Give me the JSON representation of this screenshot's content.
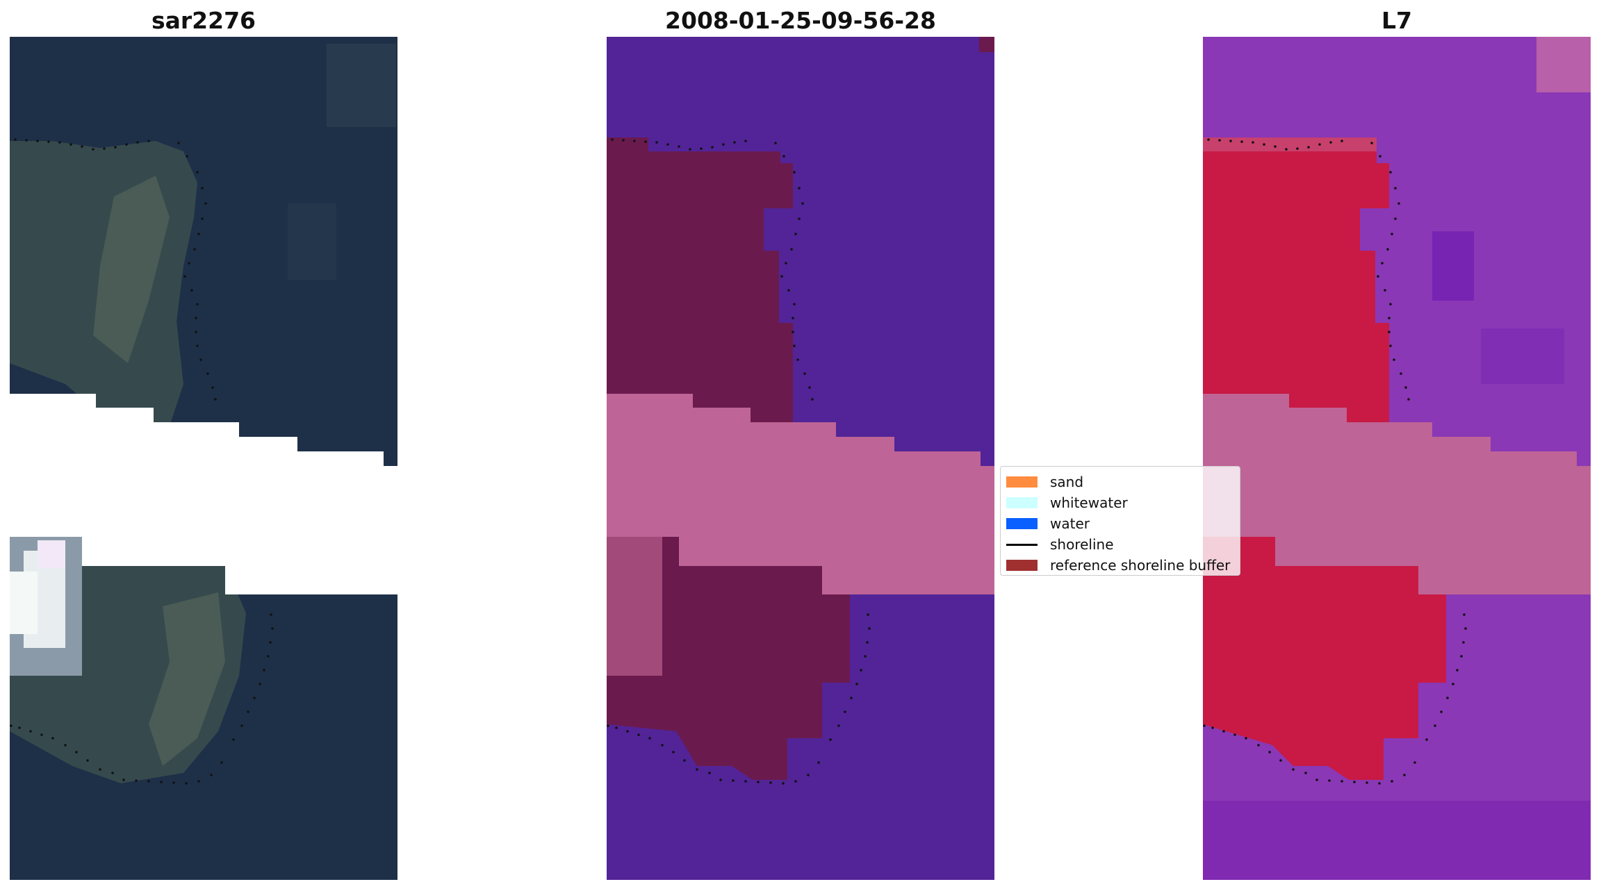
{
  "panels": {
    "rgb_title": "sar2276",
    "classification_title": "2008-01-25-09-56-28",
    "mndwi_title": "L7"
  },
  "legend": {
    "items": [
      {
        "label": "sand",
        "color": "#ff8c3f"
      },
      {
        "label": "whitewater",
        "color": "#ccffff"
      },
      {
        "label": "water",
        "color": "#0a5fff"
      },
      {
        "label": "shoreline",
        "color": "#000000"
      },
      {
        "label": "reference shoreline buffer",
        "color": "#a03030"
      }
    ]
  },
  "colors": {
    "rgb_water": "#1e3048",
    "rgb_land": "#3a4e4f",
    "rgb_cloud": "#e8eef0",
    "class_water": "#522497",
    "class_land": "#6b1a4e",
    "class_nodata": "#bf6496",
    "index_water": "#8a38b6",
    "index_land": "#c81a45",
    "index_nodata": "#bf6496",
    "shoreline_points": "#111111"
  }
}
